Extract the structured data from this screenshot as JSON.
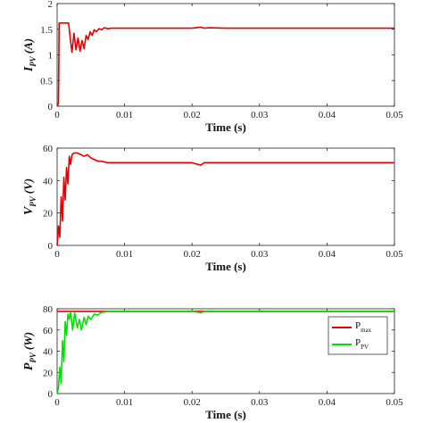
{
  "chart_data": [
    {
      "type": "line",
      "ylabel": {
        "symbol": "I",
        "subscript": "PV",
        "unit": "(A)"
      },
      "xlabel": "Time (s)",
      "xlim": [
        0,
        0.05
      ],
      "ylim": [
        0,
        2
      ],
      "xticks": [
        "0",
        "0.01",
        "0.02",
        "0.03",
        "0.04",
        "0.05"
      ],
      "yticks": [
        "0",
        "0.5",
        "1",
        "1.5",
        "2"
      ],
      "colors": {
        "line": "#e00000"
      },
      "series": [
        {
          "color": "#e00000",
          "x": [
            0,
            0.0002,
            0.0003,
            0.0017,
            0.0019,
            0.0022,
            0.0025,
            0.0028,
            0.0031,
            0.0034,
            0.0037,
            0.004,
            0.0043,
            0.0046,
            0.0049,
            0.0052,
            0.0055,
            0.0058,
            0.0062,
            0.0066,
            0.007,
            0.0075,
            0.008,
            0.009,
            0.01,
            0.012,
            0.015,
            0.02,
            0.0213,
            0.0218,
            0.0225,
            0.025,
            0.03,
            0.035,
            0.04,
            0.045,
            0.05
          ],
          "y": [
            0,
            0.05,
            1.62,
            1.62,
            1.38,
            1.05,
            1.42,
            1.1,
            1.33,
            1.07,
            1.28,
            1.12,
            1.38,
            1.3,
            1.45,
            1.38,
            1.49,
            1.45,
            1.51,
            1.49,
            1.53,
            1.51,
            1.52,
            1.52,
            1.52,
            1.52,
            1.52,
            1.52,
            1.54,
            1.52,
            1.53,
            1.52,
            1.52,
            1.52,
            1.52,
            1.52,
            1.52
          ]
        }
      ]
    },
    {
      "type": "line",
      "ylabel": {
        "symbol": "V",
        "subscript": "PV",
        "unit": "(V)"
      },
      "xlabel": "Time (s)",
      "xlim": [
        0,
        0.05
      ],
      "ylim": [
        0,
        60
      ],
      "xticks": [
        "0",
        "0.01",
        "0.02",
        "0.03",
        "0.04",
        "0.05"
      ],
      "yticks": [
        "0",
        "20",
        "40",
        "60"
      ],
      "colors": {
        "line": "#e00000"
      },
      "series": [
        {
          "color": "#e00000",
          "x": [
            0,
            0.0002,
            0.0004,
            0.0006,
            0.0008,
            0.001,
            0.0012,
            0.0014,
            0.0016,
            0.0018,
            0.002,
            0.0022,
            0.0025,
            0.003,
            0.0035,
            0.004,
            0.0045,
            0.005,
            0.0055,
            0.006,
            0.0065,
            0.007,
            0.0075,
            0.008,
            0.009,
            0.01,
            0.015,
            0.02,
            0.0213,
            0.0218,
            0.0225,
            0.025,
            0.03,
            0.04,
            0.05
          ],
          "y": [
            0,
            12,
            5,
            30,
            15,
            42,
            28,
            48,
            38,
            55,
            50,
            56,
            57,
            57,
            56,
            55,
            56,
            54,
            53,
            52,
            52,
            51.5,
            51,
            51,
            51,
            51,
            51,
            51,
            49.5,
            51,
            51,
            51,
            51,
            51,
            51
          ]
        }
      ]
    },
    {
      "type": "line",
      "ylabel": {
        "symbol": "P",
        "subscript": "PV",
        "unit": "(W)"
      },
      "xlabel": "Time (s)",
      "xlim": [
        0,
        0.05
      ],
      "ylim": [
        0,
        80
      ],
      "xticks": [
        "0",
        "0.01",
        "0.02",
        "0.03",
        "0.04",
        "0.05"
      ],
      "yticks": [
        "0",
        "20",
        "40",
        "60",
        "80"
      ],
      "legend": {
        "position": "right",
        "entries": [
          {
            "label": "P",
            "sub": "max"
          },
          {
            "label": "P",
            "sub": "PV"
          }
        ]
      },
      "colors": {
        "pmax": "#e00000",
        "ppv": "#00e000"
      },
      "series": [
        {
          "color": "#e00000",
          "x": [
            0,
            0.05
          ],
          "y": [
            77.5,
            77.5
          ]
        },
        {
          "color": "#00e000",
          "x": [
            0,
            0.0002,
            0.0004,
            0.0006,
            0.0008,
            0.001,
            0.0012,
            0.0014,
            0.0016,
            0.0018,
            0.002,
            0.0023,
            0.0026,
            0.003,
            0.0033,
            0.0036,
            0.004,
            0.0043,
            0.0046,
            0.005,
            0.0055,
            0.006,
            0.0065,
            0.007,
            0.008,
            0.01,
            0.02,
            0.0213,
            0.022,
            0.03,
            0.04,
            0.05
          ],
          "y": [
            0,
            5,
            25,
            10,
            50,
            30,
            68,
            55,
            75,
            70,
            77,
            60,
            76,
            62,
            70,
            60,
            72,
            65,
            73,
            70,
            75,
            74,
            76.5,
            77,
            77.5,
            77.5,
            77.5,
            76.5,
            77.5,
            77.5,
            77.5,
            77.5
          ]
        }
      ]
    }
  ]
}
